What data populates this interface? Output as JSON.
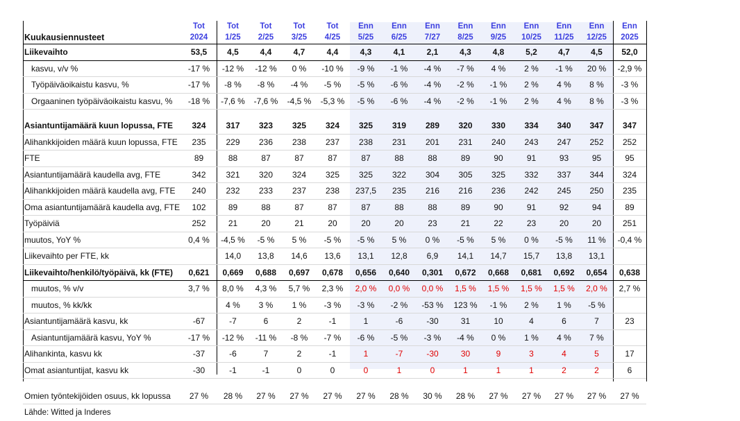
{
  "table": {
    "title": "Kuukausiennusteet",
    "header_top": [
      "Tot",
      "Tot",
      "Tot",
      "Tot",
      "Tot",
      "Enn",
      "Enn",
      "Enn",
      "Enn",
      "Enn",
      "Enn",
      "Enn",
      "Enn",
      "Enn"
    ],
    "header_bottom": [
      "2024",
      "1/25",
      "2/25",
      "3/25",
      "4/25",
      "5/25",
      "6/25",
      "7/27",
      "8/25",
      "9/25",
      "10/25",
      "11/25",
      "12/25",
      "2025"
    ],
    "rows": [
      {
        "label": "Liikevaihto",
        "values": [
          "53,5",
          "4,5",
          "4,4",
          "4,7",
          "4,4",
          "4,3",
          "4,1",
          "2,1",
          "4,3",
          "4,8",
          "5,2",
          "4,7",
          "4,5",
          "52,0"
        ]
      },
      {
        "label": "kasvu, v/v %",
        "values": [
          "-17 %",
          "-12 %",
          "-12 %",
          "0 %",
          "-10 %",
          "-9 %",
          "-1 %",
          "-4 %",
          "-7 %",
          "4 %",
          "2 %",
          "-1 %",
          "20 %",
          "-2,9 %"
        ]
      },
      {
        "label": "Työpäiväoikaistu kasvu, %",
        "values": [
          "-17 %",
          "-8 %",
          "-8 %",
          "-4 %",
          "-5 %",
          "-5 %",
          "-6 %",
          "-4 %",
          "-2 %",
          "-1 %",
          "2 %",
          "4 %",
          "8 %",
          "-3 %"
        ]
      },
      {
        "label": "Orgaaninen työpäiväoikaistu kasvu, %",
        "values": [
          "-18 %",
          "-7,6 %",
          "-7,6 %",
          "-4,5 %",
          "-5,3 %",
          "-5 %",
          "-6 %",
          "-4 %",
          "-2 %",
          "-1 %",
          "2 %",
          "4 %",
          "8 %",
          "-3 %"
        ]
      },
      {
        "label": "Asiantuntijamäärä kuun lopussa, FTE",
        "values": [
          "324",
          "317",
          "323",
          "325",
          "324",
          "325",
          "319",
          "289",
          "320",
          "330",
          "334",
          "340",
          "347",
          "347"
        ]
      },
      {
        "label": "Alihankkijoiden määrä kuun lopussa, FTE",
        "values": [
          "235",
          "229",
          "236",
          "238",
          "237",
          "238",
          "231",
          "201",
          "231",
          "240",
          "243",
          "247",
          "252",
          "252"
        ]
      },
      {
        "label": "FTE",
        "values": [
          "89",
          "88",
          "87",
          "87",
          "87",
          "87",
          "88",
          "88",
          "89",
          "90",
          "91",
          "93",
          "95",
          "95"
        ]
      },
      {
        "label": "Asiantuntijamäärä kaudella avg, FTE",
        "values": [
          "342",
          "321",
          "320",
          "324",
          "325",
          "325",
          "322",
          "304",
          "305",
          "325",
          "332",
          "337",
          "344",
          "324"
        ]
      },
      {
        "label": "Alihankkijoiden määrä kaudella avg, FTE",
        "values": [
          "240",
          "232",
          "233",
          "237",
          "238",
          "237,5",
          "235",
          "216",
          "216",
          "236",
          "242",
          "245",
          "250",
          "235"
        ]
      },
      {
        "label": "Oma asiantuntijamäärä kaudella avg, FTE",
        "values": [
          "102",
          "89",
          "88",
          "87",
          "87",
          "87",
          "88",
          "88",
          "89",
          "90",
          "91",
          "92",
          "94",
          "89"
        ]
      },
      {
        "label": "Työpäiviä",
        "values": [
          "252",
          "21",
          "20",
          "21",
          "20",
          "20",
          "20",
          "23",
          "21",
          "22",
          "23",
          "20",
          "20",
          "251"
        ]
      },
      {
        "label": "muutos, YoY %",
        "values": [
          "0,4 %",
          "-4,5 %",
          "-5 %",
          "5 %",
          "-5 %",
          "-5 %",
          "5 %",
          "0 %",
          "-5 %",
          "5 %",
          "0 %",
          "-5 %",
          "11 %",
          "-0,4 %"
        ]
      },
      {
        "label": "Liikevaihto per FTE, kk",
        "values": [
          "",
          "14,0",
          "13,8",
          "14,6",
          "13,6",
          "13,1",
          "12,8",
          "6,9",
          "14,1",
          "14,7",
          "15,7",
          "13,8",
          "13,1",
          ""
        ]
      },
      {
        "label": "Liikevaihto/henkilö/työpäivä, kk (FTE)",
        "values": [
          "0,621",
          "0,669",
          "0,688",
          "0,697",
          "0,678",
          "0,656",
          "0,640",
          "0,301",
          "0,672",
          "0,668",
          "0,681",
          "0,692",
          "0,654",
          "0,638"
        ]
      },
      {
        "label": "muutos, % v/v",
        "values": [
          "3,7 %",
          "8,0 %",
          "4,3 %",
          "5,7 %",
          "2,3 %",
          "2,0 %",
          "0,0 %",
          "0,0 %",
          "1,5 %",
          "1,5 %",
          "1,5 %",
          "1,5 %",
          "2,0 %",
          "2,7 %"
        ]
      },
      {
        "label": "muutos, % kk/kk",
        "values": [
          "",
          "4 %",
          "3 %",
          "1 %",
          "-3 %",
          "-3 %",
          "-2 %",
          "-53 %",
          "123 %",
          "-1 %",
          "2 %",
          "1 %",
          "-5 %",
          ""
        ]
      },
      {
        "label": "Asiantuntijamäärä kasvu, kk",
        "values": [
          "-67",
          "-7",
          "6",
          "2",
          "-1",
          "1",
          "-6",
          "-30",
          "31",
          "10",
          "4",
          "6",
          "7",
          "23"
        ]
      },
      {
        "label": "Asiantuntijamäärä kasvu, YoY %",
        "values": [
          "-17 %",
          "-12 %",
          "-11 %",
          "-8 %",
          "-7 %",
          "-6 %",
          "-5 %",
          "-3 %",
          "-4 %",
          "0 %",
          "1 %",
          "4 %",
          "7 %",
          ""
        ]
      },
      {
        "label": "Alihankinta, kasvu kk",
        "values": [
          "-37",
          "-6",
          "7",
          "2",
          "-1",
          "1",
          "-7",
          "-30",
          "30",
          "9",
          "3",
          "4",
          "5",
          "17"
        ]
      },
      {
        "label": "Omat asiantuntijat, kasvu kk",
        "values": [
          "-30",
          "-1",
          "-1",
          "0",
          "0",
          "0",
          "1",
          "0",
          "1",
          "1",
          "1",
          "2",
          "2",
          "6"
        ]
      },
      {
        "label": "Omien työntekijöiden osuus, kk lopussa",
        "values": [
          "27 %",
          "28 %",
          "27 %",
          "27 %",
          "27 %",
          "27 %",
          "28 %",
          "30 %",
          "28 %",
          "27 %",
          "27 %",
          "27 %",
          "27 %",
          "27 %"
        ]
      }
    ],
    "source": "Lähde: Witted ja Inderes",
    "colors": {
      "header_blue": "#3c3fe0",
      "forecast_red": "#e00000",
      "forecast_shade": "#eef1fb"
    }
  }
}
